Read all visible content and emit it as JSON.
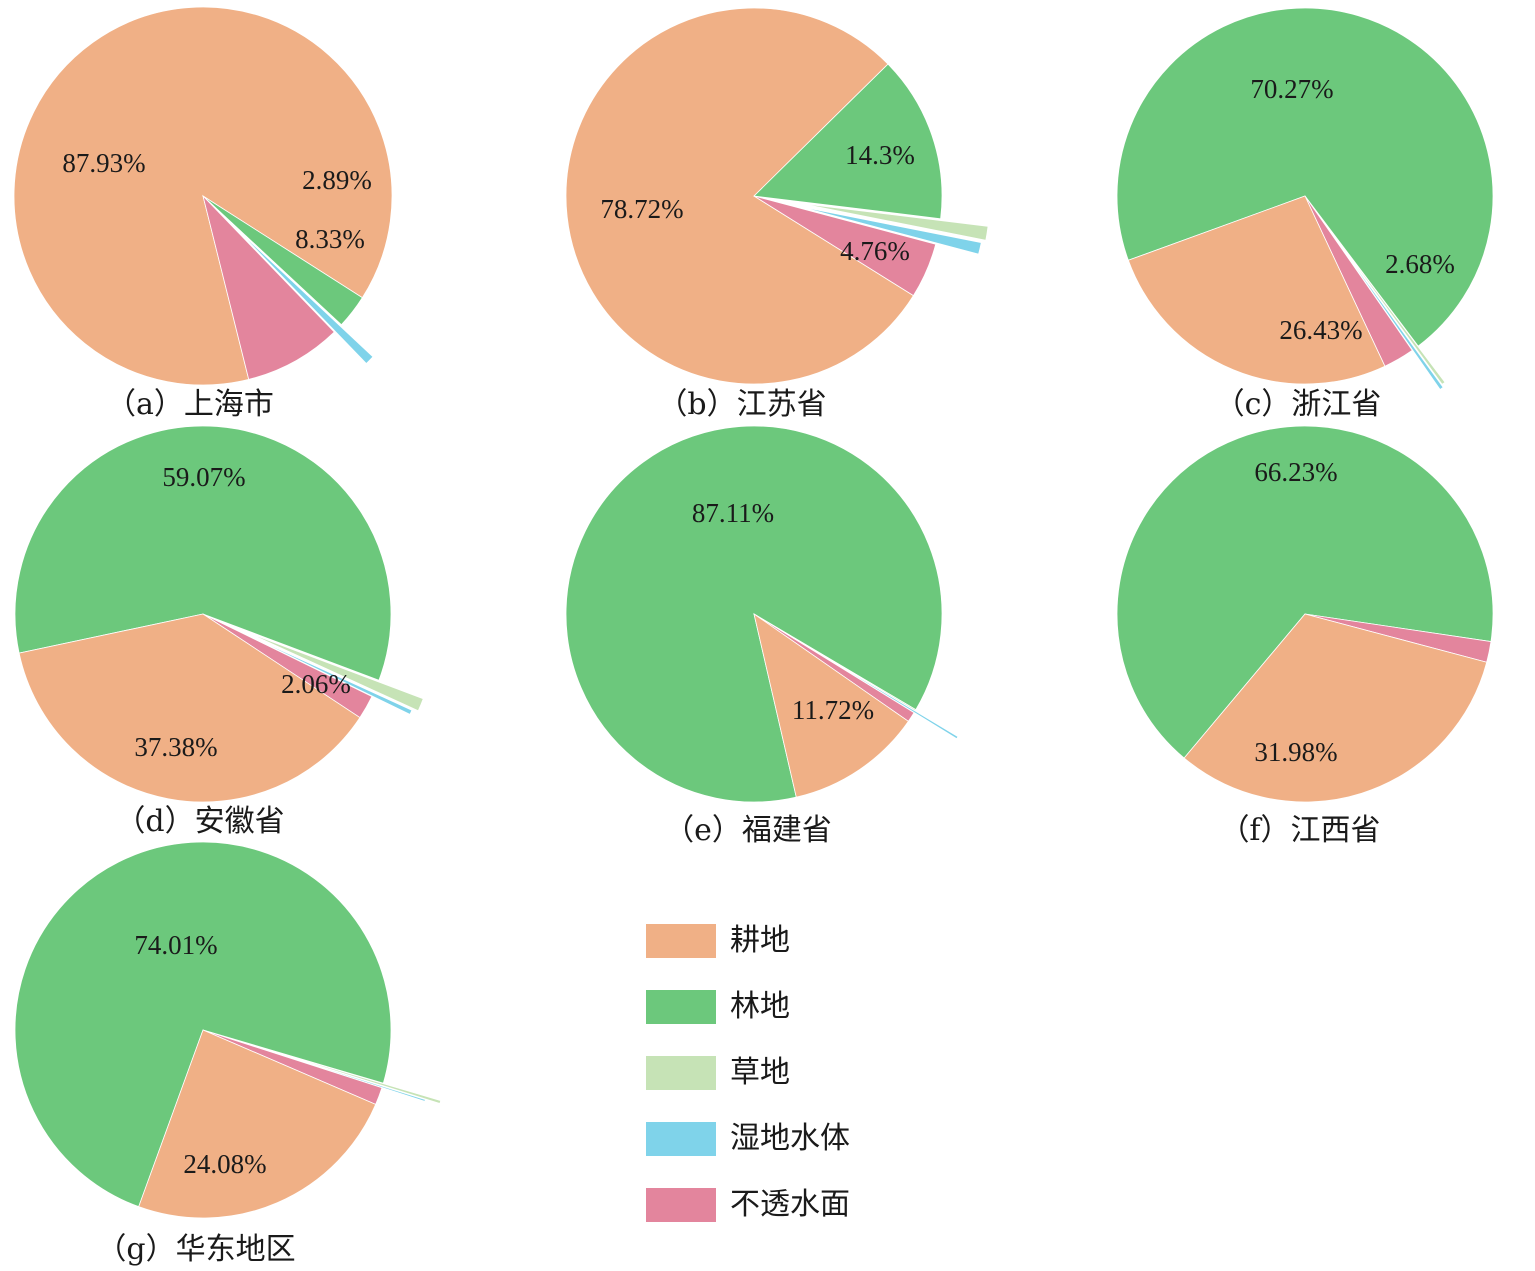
{
  "colors": {
    "耕地": "#f0b086",
    "林地": "#6cc87c",
    "草地": "#c6e3b6",
    "湿地水体": "#7fd3ea",
    "不透水面": "#e3859d"
  },
  "legend": {
    "items": [
      {
        "label": "耕地",
        "key": "耕地"
      },
      {
        "label": "林地",
        "key": "林地"
      },
      {
        "label": "草地",
        "key": "草地"
      },
      {
        "label": "湿地水体",
        "key": "湿地水体"
      },
      {
        "label": "不透水面",
        "key": "不透水面"
      }
    ]
  },
  "chart_data": [
    {
      "type": "pie",
      "caption": "（a）上海市",
      "exploded": [
        "湿地水体"
      ],
      "slices": [
        {
          "category": "耕地",
          "value": 87.93,
          "label": "87.93%"
        },
        {
          "category": "林地",
          "value": 2.89,
          "label": "2.89%"
        },
        {
          "category": "草地",
          "value": 0.05,
          "label": ""
        },
        {
          "category": "湿地水体",
          "value": 0.8,
          "label": ""
        },
        {
          "category": "不透水面",
          "value": 8.33,
          "label": "8.33%"
        }
      ]
    },
    {
      "type": "pie",
      "caption": "（b）江苏省",
      "exploded": [
        "草地",
        "湿地水体"
      ],
      "slices": [
        {
          "category": "耕地",
          "value": 78.72,
          "label": "78.72%"
        },
        {
          "category": "林地",
          "value": 14.3,
          "label": "14.3%"
        },
        {
          "category": "草地",
          "value": 1.2,
          "label": ""
        },
        {
          "category": "湿地水体",
          "value": 1.0,
          "label": ""
        },
        {
          "category": "不透水面",
          "value": 4.76,
          "label": "4.76%"
        }
      ]
    },
    {
      "type": "pie",
      "caption": "（c）浙江省",
      "exploded": [
        "草地",
        "湿地水体"
      ],
      "slices": [
        {
          "category": "林地",
          "value": 70.27,
          "label": "70.27%"
        },
        {
          "category": "草地",
          "value": 0.3,
          "label": ""
        },
        {
          "category": "湿地水体",
          "value": 0.32,
          "label": ""
        },
        {
          "category": "不透水面",
          "value": 2.68,
          "label": "2.68%"
        },
        {
          "category": "耕地",
          "value": 26.43,
          "label": "26.43%"
        }
      ]
    },
    {
      "type": "pie",
      "caption": "（d）安徽省",
      "exploded": [
        "草地",
        "湿地水体"
      ],
      "slices": [
        {
          "category": "林地",
          "value": 59.07,
          "label": "59.07%"
        },
        {
          "category": "草地",
          "value": 1.1,
          "label": ""
        },
        {
          "category": "湿地水体",
          "value": 0.39,
          "label": ""
        },
        {
          "category": "不透水面",
          "value": 2.06,
          "label": "2.06%"
        },
        {
          "category": "耕地",
          "value": 37.38,
          "label": "37.38%"
        }
      ]
    },
    {
      "type": "pie",
      "caption": "（e）福建省",
      "exploded": [
        "湿地水体"
      ],
      "slices": [
        {
          "category": "林地",
          "value": 87.11,
          "label": "87.11%"
        },
        {
          "category": "草地",
          "value": 0.1,
          "label": ""
        },
        {
          "category": "湿地水体",
          "value": 0.2,
          "label": ""
        },
        {
          "category": "不透水面",
          "value": 0.87,
          "label": ""
        },
        {
          "category": "耕地",
          "value": 11.72,
          "label": "11.72%"
        }
      ]
    },
    {
      "type": "pie",
      "caption": "（f）江西省",
      "exploded": [],
      "slices": [
        {
          "category": "林地",
          "value": 66.23,
          "label": "66.23%"
        },
        {
          "category": "不透水面",
          "value": 1.79,
          "label": ""
        },
        {
          "category": "耕地",
          "value": 31.98,
          "label": "31.98%"
        }
      ]
    },
    {
      "type": "pie",
      "caption": "（g）华东地区",
      "exploded": [
        "草地",
        "湿地水体"
      ],
      "slices": [
        {
          "category": "林地",
          "value": 74.01,
          "label": "74.01%"
        },
        {
          "category": "草地",
          "value": 0.25,
          "label": ""
        },
        {
          "category": "湿地水体",
          "value": 0.15,
          "label": ""
        },
        {
          "category": "不透水面",
          "value": 1.51,
          "label": ""
        },
        {
          "category": "耕地",
          "value": 24.08,
          "label": "24.08%"
        }
      ]
    }
  ]
}
